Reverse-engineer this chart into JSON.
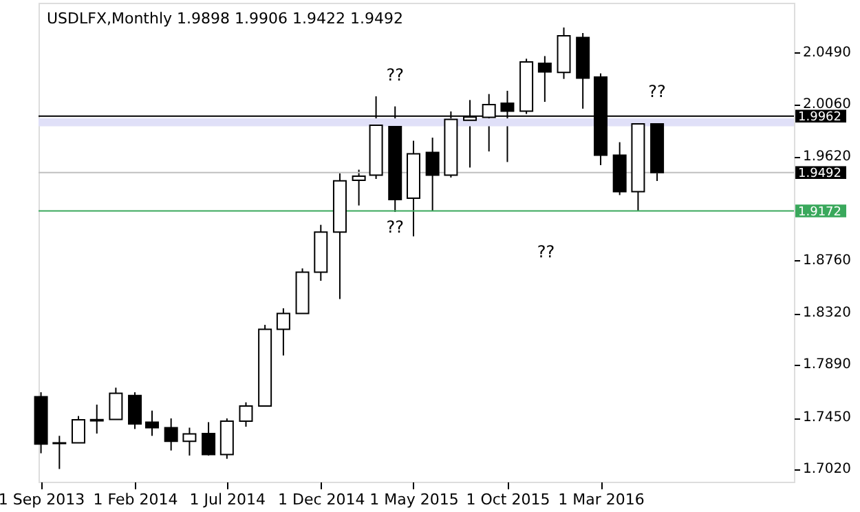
{
  "chart_data": {
    "type": "candlestick",
    "title": "USDLFX,Monthly  1.9898 1.9906 1.9422 1.9492",
    "x": [
      "2013-09-01",
      "2013-10-01",
      "2013-11-01",
      "2013-12-01",
      "2014-01-01",
      "2014-02-01",
      "2014-03-01",
      "2014-04-01",
      "2014-05-01",
      "2014-06-01",
      "2014-07-01",
      "2014-08-01",
      "2014-09-01",
      "2014-10-01",
      "2014-11-01",
      "2014-12-01",
      "2015-01-01",
      "2015-02-01",
      "2015-03-01",
      "2015-04-01",
      "2015-05-01",
      "2015-06-01",
      "2015-07-01",
      "2015-08-01",
      "2015-09-01",
      "2015-10-01",
      "2015-11-01",
      "2015-12-01",
      "2016-01-01",
      "2016-02-01",
      "2016-03-01",
      "2016-04-01",
      "2016-05-01",
      "2016-06-01"
    ],
    "ohlc": [
      [
        1.7625,
        1.7663,
        1.7155,
        1.7231
      ],
      [
        1.7236,
        1.73,
        1.7024,
        1.7242
      ],
      [
        1.7242,
        1.7465,
        1.7242,
        1.7434
      ],
      [
        1.7425,
        1.756,
        1.7319,
        1.7435
      ],
      [
        1.7437,
        1.7701,
        1.7437,
        1.7655
      ],
      [
        1.7636,
        1.7663,
        1.7357,
        1.7399
      ],
      [
        1.7414,
        1.751,
        1.73,
        1.7368
      ],
      [
        1.7368,
        1.7445,
        1.7178,
        1.7254
      ],
      [
        1.7254,
        1.7368,
        1.7136,
        1.7316
      ],
      [
        1.7319,
        1.7414,
        1.7136,
        1.7144
      ],
      [
        1.7144,
        1.7445,
        1.7109,
        1.7422
      ],
      [
        1.7422,
        1.7579,
        1.7376,
        1.7548
      ],
      [
        1.7548,
        1.8224,
        1.7548,
        1.8187
      ],
      [
        1.8187,
        1.8362,
        1.7969,
        1.8319
      ],
      [
        1.8319,
        1.8694,
        1.8319,
        1.8663
      ],
      [
        1.8663,
        1.9057,
        1.8591,
        1.8996
      ],
      [
        1.8996,
        1.9485,
        1.8439,
        1.9424
      ],
      [
        1.9428,
        1.9516,
        1.9218,
        1.9462
      ],
      [
        1.947,
        2.0127,
        1.9439,
        1.9886
      ],
      [
        1.9875,
        2.0043,
        1.9164,
        1.9267
      ],
      [
        1.9278,
        1.9757,
        1.8961,
        1.9649
      ],
      [
        1.966,
        1.9783,
        1.9172,
        1.947
      ],
      [
        1.947,
        2.0001,
        1.9451,
        1.9935
      ],
      [
        1.9928,
        2.0096,
        1.9534,
        1.9955
      ],
      [
        1.9952,
        2.0146,
        1.9668,
        2.0058
      ],
      [
        2.0069,
        2.0173,
        1.958,
        2.0004
      ],
      [
        2.0004,
        2.044,
        1.998,
        2.0413
      ],
      [
        2.0402,
        2.0462,
        2.0081,
        2.033
      ],
      [
        2.0326,
        2.07,
        2.0272,
        2.0631
      ],
      [
        2.0616,
        2.0654,
        2.0024,
        2.0279
      ],
      [
        2.0287,
        2.0318,
        1.9554,
        1.9637
      ],
      [
        1.9637,
        1.9745,
        1.9305,
        1.9333
      ],
      [
        1.9333,
        1.9935,
        1.9172,
        1.9898
      ],
      [
        1.9898,
        1.9906,
        1.9422,
        1.9492
      ]
    ],
    "xlim": [
      "2013-08-28",
      "2017-01-10"
    ],
    "xticks": [
      {
        "value": "2013-09-01",
        "label": "1 Sep 2013"
      },
      {
        "value": "2014-02-01",
        "label": "1 Feb 2014"
      },
      {
        "value": "2014-07-01",
        "label": "1 Jul 2014"
      },
      {
        "value": "2014-12-01",
        "label": "1 Dec 2014"
      },
      {
        "value": "2015-05-01",
        "label": "1 May 2015"
      },
      {
        "value": "2015-10-01",
        "label": "1 Oct 2015"
      },
      {
        "value": "2016-03-01",
        "label": "1 Mar 2016"
      }
    ],
    "ylim": [
      1.6918,
      2.0906
    ],
    "yticks": [
      {
        "value": 1.702,
        "label": "1.7020"
      },
      {
        "value": 1.745,
        "label": "1.7450"
      },
      {
        "value": 1.789,
        "label": "1.7890"
      },
      {
        "value": 1.832,
        "label": "1.8320"
      },
      {
        "value": 1.876,
        "label": "1.8760"
      },
      {
        "value": 1.962,
        "label": "1.9620"
      },
      {
        "value": 2.006,
        "label": "2.0060"
      },
      {
        "value": 2.049,
        "label": "2.0490"
      }
    ],
    "ref_lines": [
      {
        "axis": "y",
        "value": 1.9962,
        "label": "1.9962",
        "color": "#000000"
      },
      {
        "axis": "y",
        "value": 1.9492,
        "label": "1.9492",
        "color": "#c0c0c0"
      },
      {
        "axis": "y",
        "value": 1.9172,
        "label": "1.9172",
        "color": "#3aa85c"
      }
    ],
    "bands": [
      {
        "axis": "y",
        "from": 1.9878,
        "to": 1.9943,
        "color": "#e0e0f8"
      }
    ],
    "annotations": [
      {
        "text": "??",
        "x": "2015-04-01",
        "y": 2.0043
      },
      {
        "text": "??",
        "x": "2015-04-01",
        "y": 1.9164
      },
      "??",
      {
        "text": "??",
        "x": "2016-06-01",
        "y": 1.9906
      }
    ],
    "grid": false
  }
}
